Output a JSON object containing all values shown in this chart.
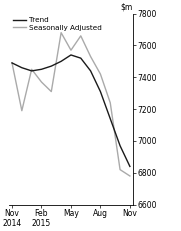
{
  "ylim": [
    6600,
    7800
  ],
  "yticks": [
    6600,
    6800,
    7000,
    7200,
    7400,
    7600,
    7800
  ],
  "xtick_labels": [
    "Nov\n2014",
    "Feb\n2015",
    "May",
    "Aug",
    "Nov"
  ],
  "xtick_positions": [
    0,
    3,
    6,
    9,
    12
  ],
  "trend_x": [
    0,
    1,
    2,
    3,
    4,
    5,
    6,
    7,
    8,
    9,
    10,
    11,
    12
  ],
  "trend_y": [
    7490,
    7460,
    7440,
    7450,
    7470,
    7500,
    7540,
    7520,
    7440,
    7310,
    7140,
    6970,
    6840
  ],
  "seasonal_x": [
    0,
    1,
    2,
    3,
    4,
    5,
    6,
    7,
    8,
    9,
    10,
    11,
    12
  ],
  "seasonal_y": [
    7490,
    7190,
    7450,
    7370,
    7310,
    7680,
    7570,
    7660,
    7530,
    7420,
    7240,
    6820,
    6780
  ],
  "trend_color": "#1a1a1a",
  "seasonal_color": "#aaaaaa",
  "trend_linewidth": 1.0,
  "seasonal_linewidth": 1.0,
  "legend_labels": [
    "Trend",
    "Seasonally Adjusted"
  ],
  "background_color": "#ffffff"
}
